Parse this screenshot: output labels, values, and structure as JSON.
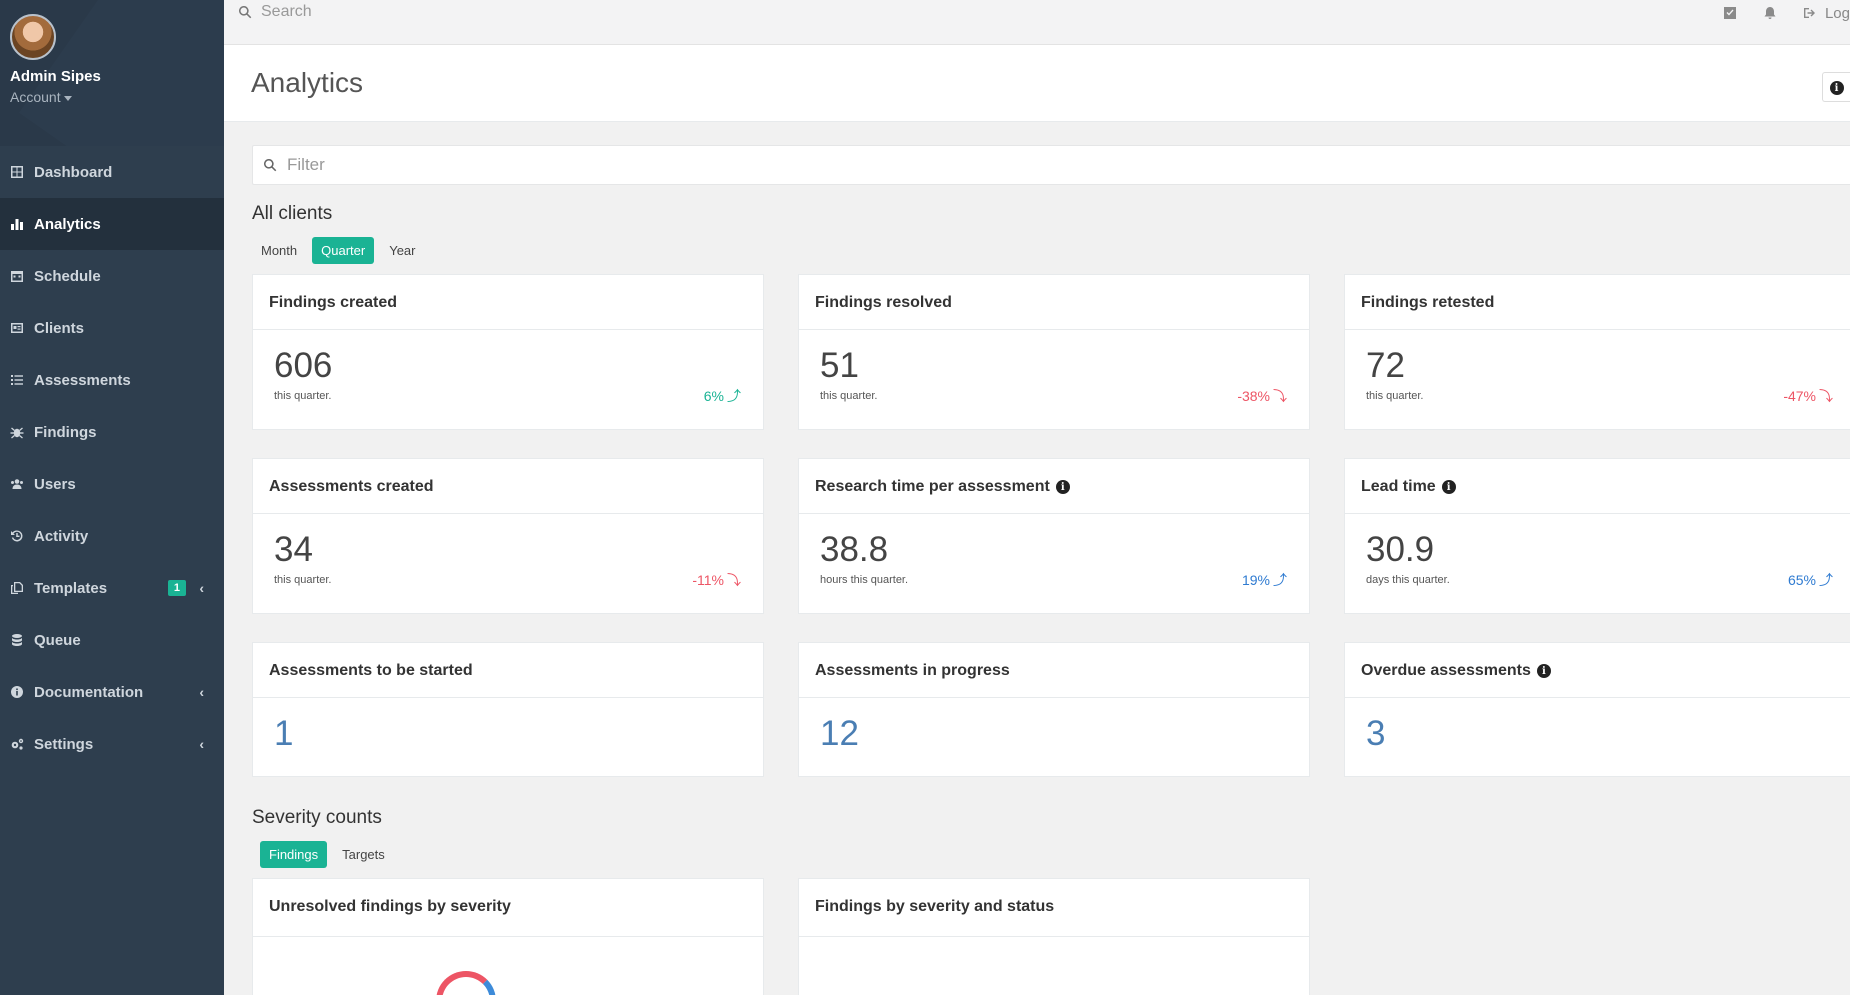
{
  "user": {
    "name": "Admin Sipes",
    "account": "Account"
  },
  "sidebar": {
    "items": [
      {
        "label": "Dashboard",
        "icon": "dashboard-icon"
      },
      {
        "label": "Analytics",
        "icon": "bar-chart-icon",
        "active": true
      },
      {
        "label": "Schedule",
        "icon": "calendar-icon"
      },
      {
        "label": "Clients",
        "icon": "id-card-icon"
      },
      {
        "label": "Assessments",
        "icon": "list-icon"
      },
      {
        "label": "Findings",
        "icon": "bug-icon"
      },
      {
        "label": "Users",
        "icon": "users-icon"
      },
      {
        "label": "Activity",
        "icon": "history-icon"
      },
      {
        "label": "Templates",
        "icon": "copy-icon",
        "badge": "1",
        "chevron": true
      },
      {
        "label": "Queue",
        "icon": "database-icon"
      },
      {
        "label": "Documentation",
        "icon": "info-icon",
        "chevron": true
      },
      {
        "label": "Settings",
        "icon": "cogs-icon",
        "chevron": true
      }
    ]
  },
  "topbar": {
    "search_placeholder": "Search",
    "logout_label": "Log"
  },
  "page": {
    "title": "Analytics"
  },
  "filter": {
    "placeholder": "Filter"
  },
  "all_clients": {
    "title": "All clients",
    "periods": [
      "Month",
      "Quarter",
      "Year"
    ],
    "selected_period": "Quarter",
    "cards": [
      {
        "title": "Findings created",
        "value": "606",
        "sub": "this quarter.",
        "change": "6%",
        "direction": "up",
        "color": "#1ab394"
      },
      {
        "title": "Findings resolved",
        "value": "51",
        "sub": "this quarter.",
        "change": "-38%",
        "direction": "down",
        "color": "#ed5565"
      },
      {
        "title": "Findings retested",
        "value": "72",
        "sub": "this quarter.",
        "change": "-47%",
        "direction": "down",
        "color": "#ed5565"
      },
      {
        "title": "Assessments created",
        "value": "34",
        "sub": "this quarter.",
        "change": "-11%",
        "direction": "down",
        "color": "#ed5565"
      },
      {
        "title": "Research time per assessment",
        "info": true,
        "value": "38.8",
        "sub": "hours this quarter.",
        "change": "19%",
        "direction": "up",
        "color": "#2f7bd1"
      },
      {
        "title": "Lead time",
        "info": true,
        "value": "30.9",
        "sub": "days this quarter.",
        "change": "65%",
        "direction": "up",
        "color": "#2f7bd1"
      },
      {
        "title": "Assessments to be started",
        "value": "1"
      },
      {
        "title": "Assessments in progress",
        "value": "12"
      },
      {
        "title": "Overdue assessments",
        "info": true,
        "value": "3"
      }
    ]
  },
  "severity": {
    "title": "Severity counts",
    "tabs": [
      "Findings",
      "Targets"
    ],
    "selected_tab": "Findings",
    "cards": [
      {
        "title": "Unresolved findings by severity"
      },
      {
        "title": "Findings by severity and status"
      }
    ]
  }
}
